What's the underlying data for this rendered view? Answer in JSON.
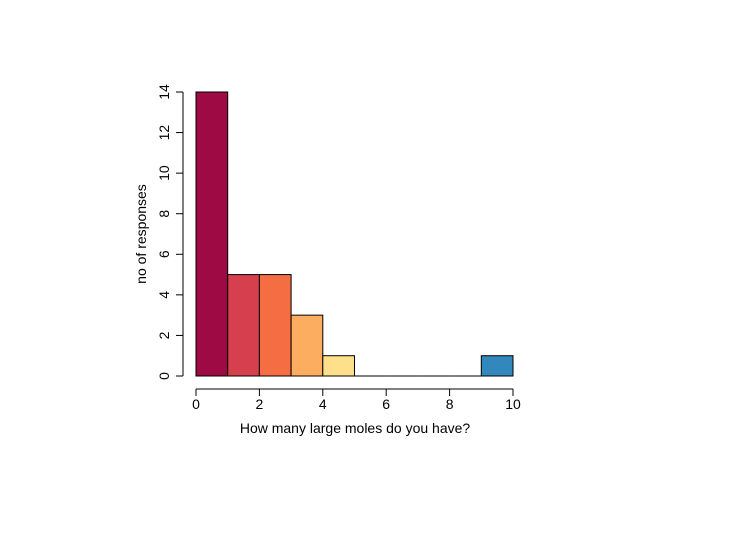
{
  "chart_data": {
    "type": "bar",
    "title": "",
    "xlabel": "How many large moles do you have?",
    "ylabel": "no of responses",
    "bins": [
      {
        "x0": 0,
        "x1": 1,
        "count": 14,
        "color": "#9E0A43"
      },
      {
        "x0": 1,
        "x1": 2,
        "count": 5,
        "color": "#D53F4E"
      },
      {
        "x0": 2,
        "x1": 3,
        "count": 5,
        "color": "#F46D43"
      },
      {
        "x0": 3,
        "x1": 4,
        "count": 3,
        "color": "#FDAD60"
      },
      {
        "x0": 4,
        "x1": 5,
        "count": 1,
        "color": "#FEE08B"
      },
      {
        "x0": 5,
        "x1": 6,
        "count": 0,
        "color": "#FFFFBF"
      },
      {
        "x0": 6,
        "x1": 7,
        "count": 0,
        "color": "#E6F598"
      },
      {
        "x0": 7,
        "x1": 8,
        "count": 0,
        "color": "#ABDDA4"
      },
      {
        "x0": 8,
        "x1": 9,
        "count": 0,
        "color": "#66C2A5"
      },
      {
        "x0": 9,
        "x1": 10,
        "count": 1,
        "color": "#3288BD"
      }
    ],
    "xlim": [
      0,
      10
    ],
    "ylim": [
      0,
      14
    ],
    "xticks": [
      "0",
      "2",
      "4",
      "6",
      "8",
      "10"
    ],
    "yticks": [
      "0",
      "2",
      "4",
      "6",
      "8",
      "10",
      "12",
      "14"
    ],
    "grid": false,
    "legend": "none"
  }
}
